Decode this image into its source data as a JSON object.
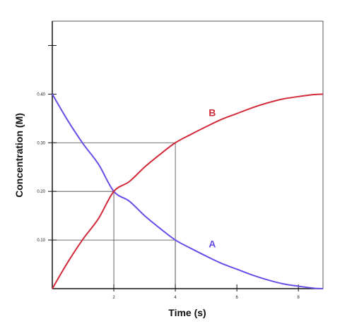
{
  "chart_data": {
    "type": "line",
    "title": "",
    "xlabel": "Time (s)",
    "ylabel": "Concentration (M)",
    "xlim": [
      0,
      8.8
    ],
    "ylim": [
      0,
      0.55
    ],
    "grid": false,
    "x_ticks": [
      {
        "value": 2,
        "label": "2"
      },
      {
        "value": 4,
        "label": "4"
      },
      {
        "value": 6,
        "label": "6"
      },
      {
        "value": 8,
        "label": "8"
      }
    ],
    "y_ticks": [
      {
        "value": 0.1,
        "label": "0.10"
      },
      {
        "value": 0.2,
        "label": "0.20"
      },
      {
        "value": 0.3,
        "label": "0.30"
      },
      {
        "value": 0.4,
        "label": "0.40"
      },
      {
        "value": 0.5,
        "label": ""
      }
    ],
    "series": [
      {
        "name": "A",
        "color": "#6a4de8",
        "x": [
          0,
          0.5,
          1,
          1.5,
          2,
          2.5,
          3,
          3.5,
          4,
          4.5,
          5,
          5.5,
          6,
          6.5,
          7,
          7.5,
          8,
          8.5,
          8.8
        ],
        "y": [
          0.4,
          0.346,
          0.298,
          0.256,
          0.2,
          0.18,
          0.15,
          0.124,
          0.1,
          0.083,
          0.067,
          0.052,
          0.04,
          0.028,
          0.018,
          0.01,
          0.005,
          0.001,
          0.0
        ]
      },
      {
        "name": "B",
        "color": "#d12b3a",
        "x": [
          0,
          0.5,
          1,
          1.5,
          2,
          2.5,
          3,
          3.5,
          4,
          4.5,
          5,
          5.5,
          6,
          6.5,
          7,
          7.5,
          8,
          8.5,
          8.8
        ],
        "y": [
          0.0,
          0.054,
          0.102,
          0.144,
          0.2,
          0.22,
          0.25,
          0.276,
          0.3,
          0.317,
          0.333,
          0.348,
          0.36,
          0.372,
          0.382,
          0.39,
          0.395,
          0.399,
          0.4
        ]
      }
    ],
    "guide_points": [
      {
        "x": 2,
        "y": 0.2
      },
      {
        "x": 4,
        "y": 0.3
      },
      {
        "x": 4,
        "y": 0.1
      }
    ]
  }
}
